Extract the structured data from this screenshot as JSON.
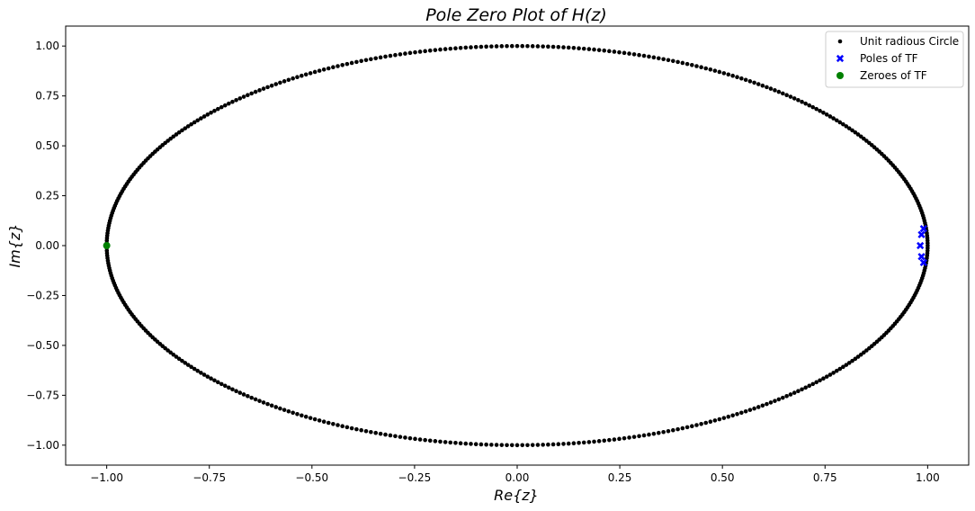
{
  "chart_data": {
    "type": "scatter",
    "title": "Pole Zero Plot of H(z)",
    "xlabel": "Re{z}",
    "ylabel": "Im{z}",
    "xlim": [
      -1.1,
      1.1
    ],
    "ylim": [
      -1.1,
      1.1
    ],
    "x_ticks": [
      -1.0,
      -0.75,
      -0.5,
      -0.25,
      0.0,
      0.25,
      0.5,
      0.75,
      1.0
    ],
    "y_ticks": [
      -1.0,
      -0.75,
      -0.5,
      -0.25,
      0.0,
      0.25,
      0.5,
      0.75,
      1.0
    ],
    "x_tick_labels": [
      "−1.00",
      "−0.75",
      "−0.50",
      "−0.25",
      "0.00",
      "0.25",
      "0.50",
      "0.75",
      "1.00"
    ],
    "y_tick_labels": [
      "−1.00",
      "−0.75",
      "−0.50",
      "−0.25",
      "0.00",
      "0.25",
      "0.50",
      "0.75",
      "1.00"
    ],
    "grid": false,
    "legend_position": "top-right",
    "series": [
      {
        "name": "Unit radious Circle",
        "marker": "dot",
        "color": "#000000",
        "point_count": 500,
        "radius": 1.0
      },
      {
        "name": "Poles of TF",
        "marker": "x",
        "color": "#0000ff",
        "points": [
          {
            "x": 0.99,
            "y": 0.085
          },
          {
            "x": 0.985,
            "y": 0.055
          },
          {
            "x": 0.982,
            "y": 0.0
          },
          {
            "x": 0.985,
            "y": -0.055
          },
          {
            "x": 0.99,
            "y": -0.085
          }
        ]
      },
      {
        "name": "Zeroes of TF",
        "marker": "circle",
        "color": "#008000",
        "points": [
          {
            "x": -1.0,
            "y": 0.0
          }
        ]
      }
    ]
  }
}
